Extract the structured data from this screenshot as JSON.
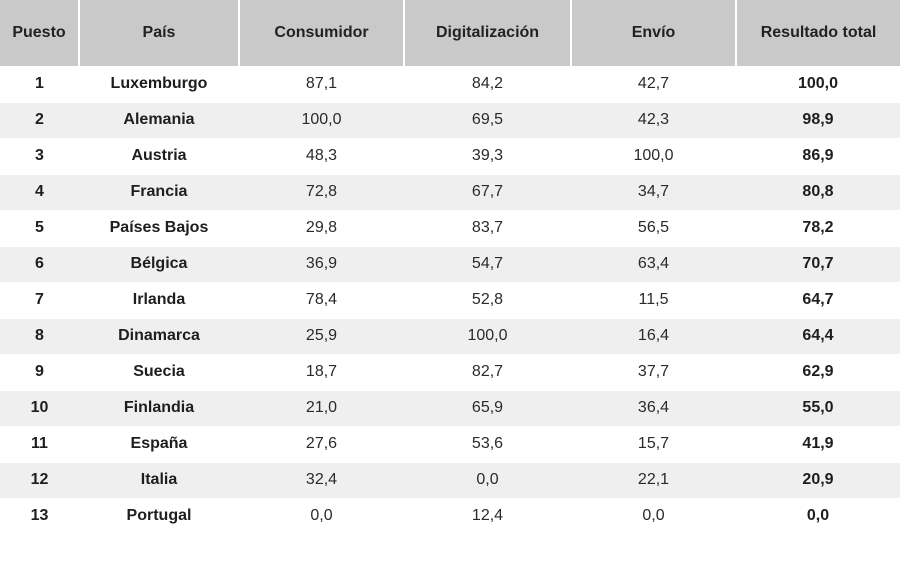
{
  "table": {
    "headers": [
      "Puesto",
      "País",
      "Consumidor",
      "Digitalización",
      "Envío",
      "Resultado total"
    ],
    "rows": [
      {
        "rank": "1",
        "country": "Luxemburgo",
        "consumer": "87,1",
        "digital": "84,2",
        "shipping": "42,7",
        "total": "100,0"
      },
      {
        "rank": "2",
        "country": "Alemania",
        "consumer": "100,0",
        "digital": "69,5",
        "shipping": "42,3",
        "total": "98,9"
      },
      {
        "rank": "3",
        "country": "Austria",
        "consumer": "48,3",
        "digital": "39,3",
        "shipping": "100,0",
        "total": "86,9"
      },
      {
        "rank": "4",
        "country": "Francia",
        "consumer": "72,8",
        "digital": "67,7",
        "shipping": "34,7",
        "total": "80,8"
      },
      {
        "rank": "5",
        "country": "Países Bajos",
        "consumer": "29,8",
        "digital": "83,7",
        "shipping": "56,5",
        "total": "78,2"
      },
      {
        "rank": "6",
        "country": "Bélgica",
        "consumer": "36,9",
        "digital": "54,7",
        "shipping": "63,4",
        "total": "70,7"
      },
      {
        "rank": "7",
        "country": "Irlanda",
        "consumer": "78,4",
        "digital": "52,8",
        "shipping": "11,5",
        "total": "64,7"
      },
      {
        "rank": "8",
        "country": "Dinamarca",
        "consumer": "25,9",
        "digital": "100,0",
        "shipping": "16,4",
        "total": "64,4"
      },
      {
        "rank": "9",
        "country": "Suecia",
        "consumer": "18,7",
        "digital": "82,7",
        "shipping": "37,7",
        "total": "62,9"
      },
      {
        "rank": "10",
        "country": "Finlandia",
        "consumer": "21,0",
        "digital": "65,9",
        "shipping": "36,4",
        "total": "55,0"
      },
      {
        "rank": "11",
        "country": "España",
        "consumer": "27,6",
        "digital": "53,6",
        "shipping": "15,7",
        "total": "41,9"
      },
      {
        "rank": "12",
        "country": "Italia",
        "consumer": "32,4",
        "digital": "0,0",
        "shipping": "22,1",
        "total": "20,9"
      },
      {
        "rank": "13",
        "country": "Portugal",
        "consumer": "0,0",
        "digital": "12,4",
        "shipping": "0,0",
        "total": "0,0"
      }
    ]
  },
  "colors": {
    "header_bg": "#c9c9c9",
    "alt_row_bg": "#efefef",
    "row_bg": "#ffffff"
  }
}
